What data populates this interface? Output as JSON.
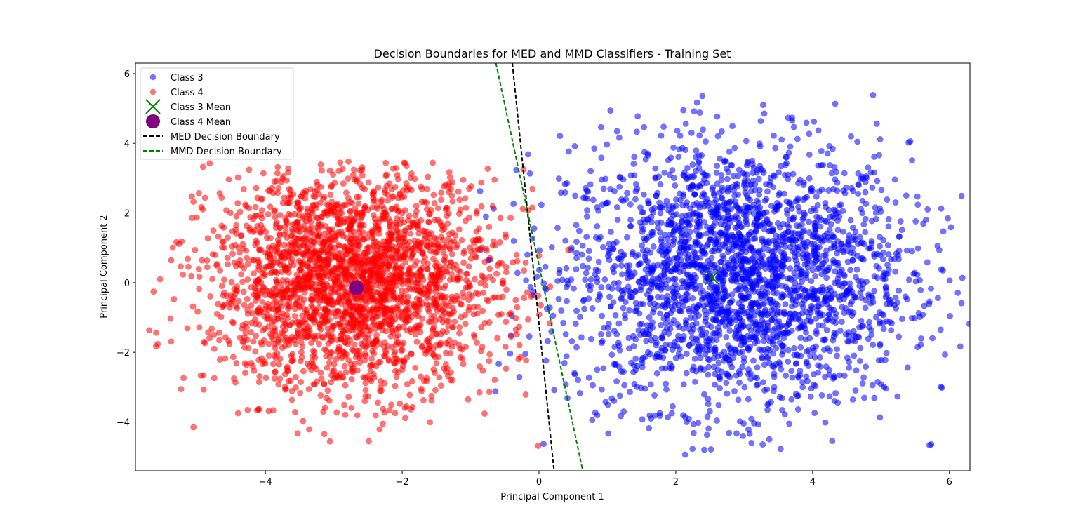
{
  "chart_data": {
    "type": "scatter",
    "title": "Decision Boundaries for MED and MMD Classifiers - Training Set",
    "xlabel": "Principal Component 1",
    "ylabel": "Principal Component 2",
    "xlim": [
      -5.9,
      6.3
    ],
    "ylim": [
      -5.4,
      6.3
    ],
    "xticks": [
      -4,
      -2,
      0,
      2,
      4,
      6
    ],
    "yticks": [
      -4,
      -2,
      0,
      2,
      4,
      6
    ],
    "xtick_labels": [
      "−4",
      "−2",
      "0",
      "2",
      "4",
      "6"
    ],
    "ytick_labels": [
      "−4",
      "−2",
      "0",
      "2",
      "4",
      "6"
    ],
    "grid": false,
    "legend_position": "upper-left",
    "series": [
      {
        "name": "Class 3",
        "kind": "scatter",
        "color": "#0000ff",
        "alpha": 0.55,
        "distribution": {
          "center": [
            2.9,
            0.2
          ],
          "spread": [
            1.25,
            1.9
          ],
          "x_range": [
            -1.2,
            6.3
          ],
          "y_range": [
            -5.0,
            5.7
          ],
          "count": 2600
        }
      },
      {
        "name": "Class 4",
        "kind": "scatter",
        "color": "#ff0000",
        "alpha": 0.55,
        "distribution": {
          "center": [
            -2.7,
            0.0
          ],
          "spread": [
            1.05,
            1.55
          ],
          "x_range": [
            -5.8,
            0.5
          ],
          "y_range": [
            -4.8,
            3.5
          ],
          "count": 2600
        }
      },
      {
        "name": "Class 3 Mean",
        "kind": "marker",
        "marker": "x",
        "color": "#008000",
        "x": 2.53,
        "y": 0.15
      },
      {
        "name": "Class 4 Mean",
        "kind": "marker",
        "marker": "o",
        "color": "#800080",
        "x": -2.67,
        "y": -0.15
      },
      {
        "name": "MED Decision Boundary",
        "kind": "line",
        "style": "dashed",
        "color": "#000000",
        "points": [
          [
            -0.39,
            6.3
          ],
          [
            0.22,
            -5.4
          ]
        ]
      },
      {
        "name": "MMD Decision Boundary",
        "kind": "line",
        "style": "dashed",
        "color": "#008000",
        "points": [
          [
            -0.63,
            6.3
          ],
          [
            0.64,
            -5.4
          ]
        ]
      }
    ]
  }
}
